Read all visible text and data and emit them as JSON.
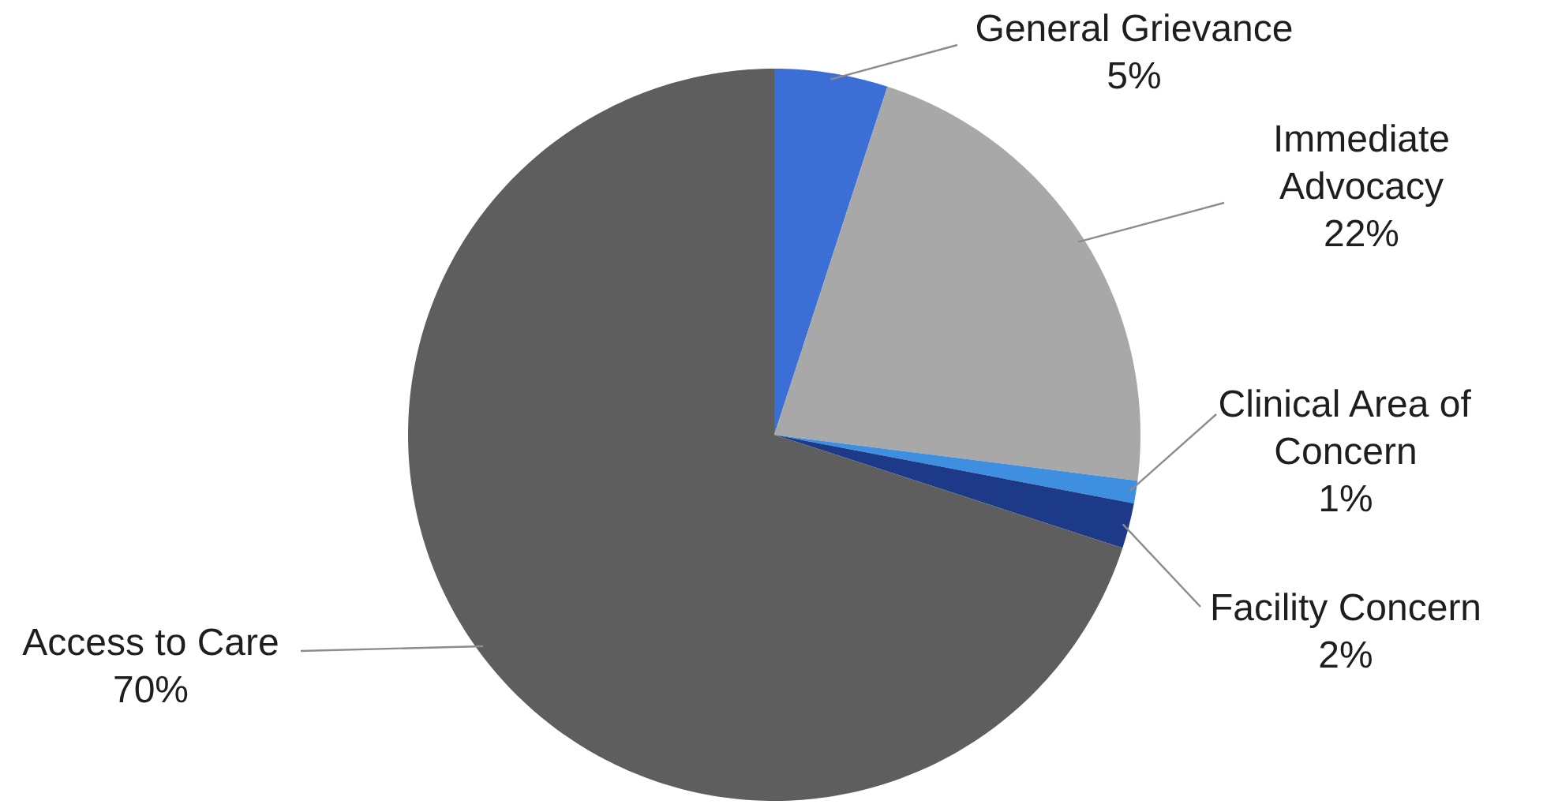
{
  "chart_data": {
    "type": "pie",
    "categories": [
      "General Grievance",
      "Immediate Advocacy",
      "Clinical Area of Concern",
      "Facility Concern",
      "Access to Care"
    ],
    "values": [
      5,
      22,
      1,
      2,
      70
    ],
    "colors": [
      "#3b6fd6",
      "#a8a8a8",
      "#3f8fe0",
      "#1c3a88",
      "#5e5e5e"
    ],
    "value_labels": [
      "5%",
      "22%",
      "1%",
      "2%",
      "70%"
    ]
  }
}
